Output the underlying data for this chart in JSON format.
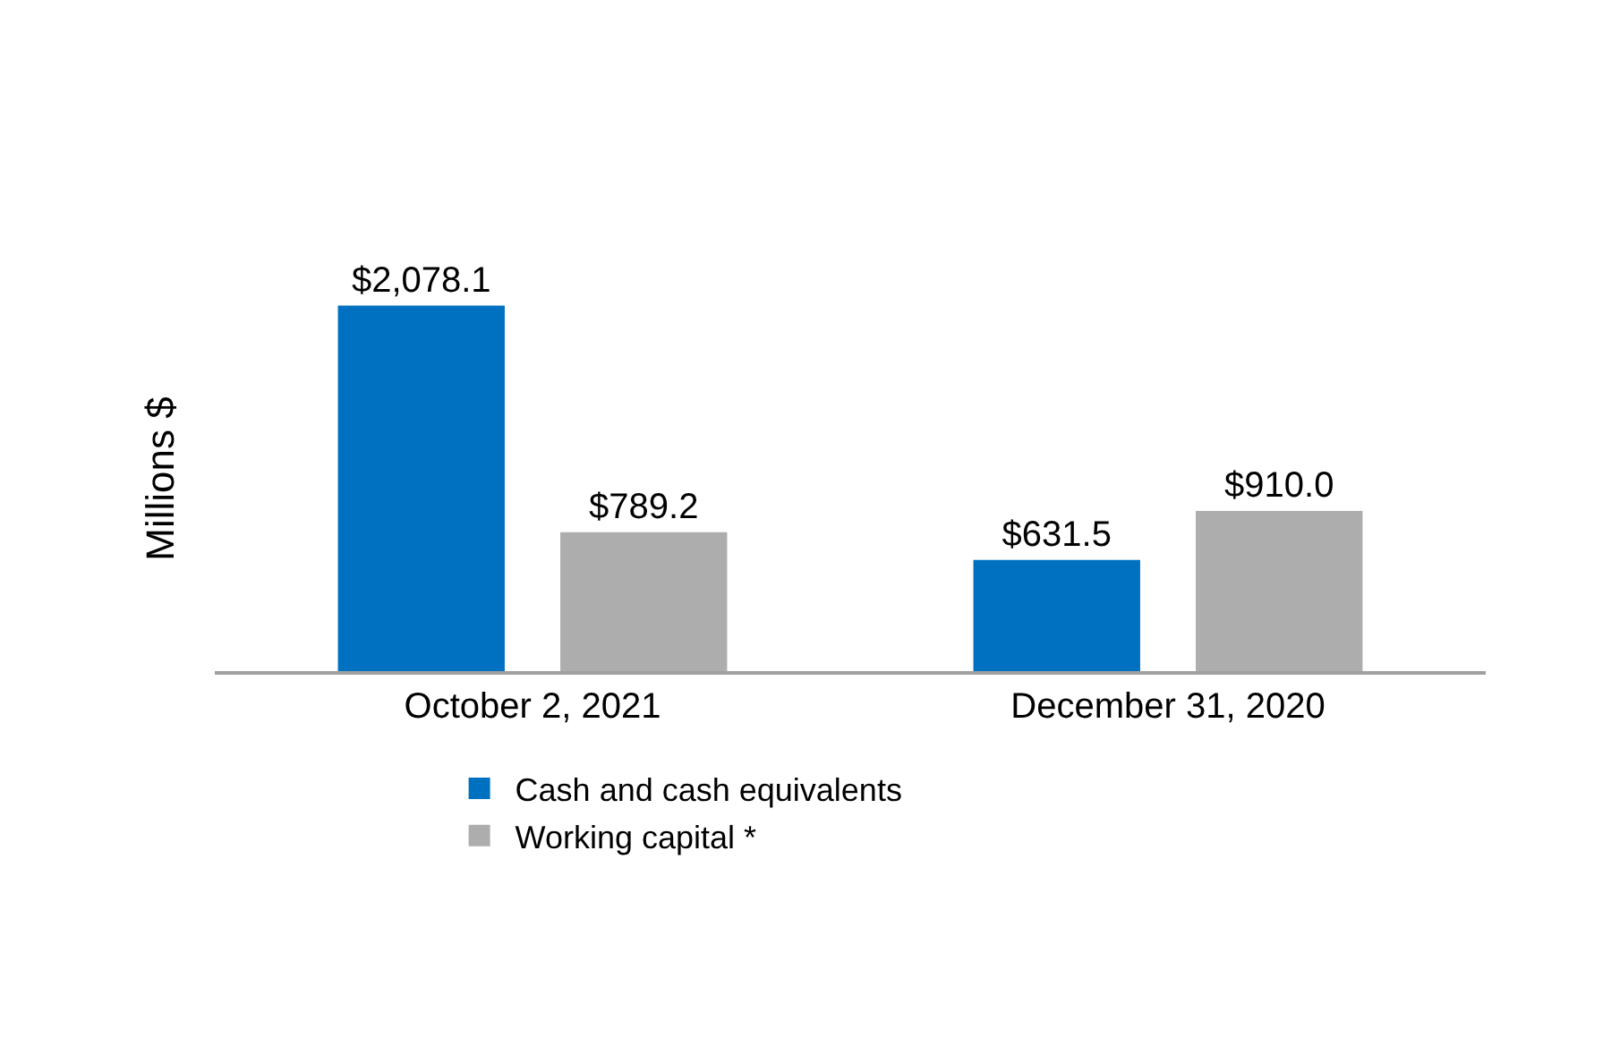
{
  "chart_data": {
    "type": "bar",
    "ylabel": "Millions $",
    "categories": [
      "October 2, 2021",
      "December 31, 2020"
    ],
    "series": [
      {
        "name": "Cash and cash equivalents",
        "color": "#0070c0",
        "values": [
          2078.1,
          631.5
        ],
        "value_labels": [
          "$2,078.1",
          "$631.5"
        ]
      },
      {
        "name": "Working capital *",
        "color": "#adadad",
        "values": [
          789.2,
          910.0
        ],
        "value_labels": [
          "$789.2",
          "$910.0"
        ]
      }
    ],
    "legend": "bottom"
  }
}
